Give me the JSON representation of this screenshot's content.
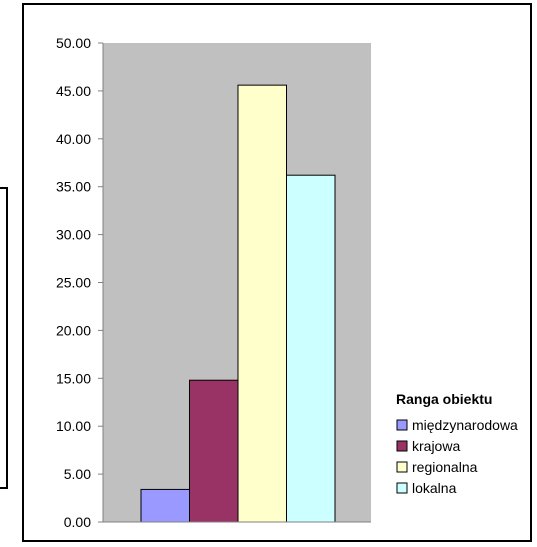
{
  "chart_data": {
    "type": "bar",
    "categories": [
      "międzynarodowa",
      "krajowa",
      "regionalna",
      "lokalna"
    ],
    "values": [
      3.4,
      14.8,
      45.6,
      36.2
    ],
    "colors": [
      "#9999ff",
      "#993366",
      "#ffffcc",
      "#ccffff"
    ],
    "ylim": [
      0,
      50
    ],
    "yticks": [
      "0.00",
      "5.00",
      "10.00",
      "15.00",
      "20.00",
      "25.00",
      "30.00",
      "35.00",
      "40.00",
      "45.00",
      "50.00"
    ],
    "plot_background": "#c0c0c0",
    "grid": false,
    "legend": {
      "title": "Ranga obiektu",
      "position": "right"
    }
  }
}
